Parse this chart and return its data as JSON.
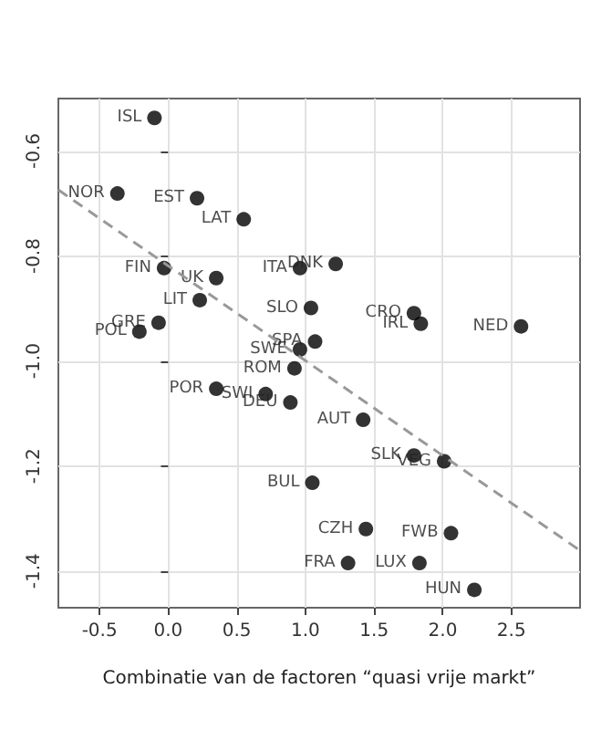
{
  "chart_data": {
    "type": "scatter",
    "xlabel": "Combinatie van de factoren “quasi vrije markt”",
    "xlim": [
      -0.8,
      3.0
    ],
    "ylim": [
      -1.47,
      -0.5
    ],
    "xticks": [
      -0.5,
      {
        "value": 0,
        "label": "0.0"
      },
      0.5,
      {
        "value": 1,
        "label": "1.0"
      },
      1.5,
      {
        "value": 2,
        "label": "2.0"
      },
      2.5
    ],
    "yticks": [
      -1.4,
      -1.2,
      {
        "value": -1,
        "label": "-1.0"
      },
      -0.8,
      -0.6
    ],
    "grid": true,
    "marker": "circle",
    "series": [
      {
        "color": "#000000",
        "x": [
          -0.1,
          -0.37,
          0.21,
          0.55,
          -0.03,
          0.35,
          0.23,
          -0.07,
          -0.21,
          0.96,
          1.04,
          1.22,
          1.79,
          1.84,
          2.57,
          1.07,
          0.96,
          0.92,
          0.35,
          0.71,
          0.89,
          1.42,
          1.79,
          2.01,
          1.05,
          1.44,
          2.06,
          1.31,
          1.83,
          2.23
        ],
        "values": [
          -0.537,
          -0.681,
          -0.69,
          -0.73,
          -0.823,
          -0.842,
          -0.884,
          -0.927,
          -0.944,
          -0.823,
          -0.899,
          -0.815,
          -0.909,
          -0.929,
          -0.934,
          -0.963,
          -0.978,
          -1.014,
          -1.053,
          -1.063,
          -1.079,
          -1.112,
          -1.18,
          -1.191,
          -1.232,
          -1.32,
          -1.328,
          -1.385,
          -1.385,
          -1.436
        ],
        "value_labels": [
          "ISL",
          "NOR",
          "EST",
          "LAT",
          "FIN",
          "UK",
          "LIT",
          "GRE",
          "POL",
          "ITA",
          "SLO",
          "DNK",
          "CRO",
          "IRL",
          "NED",
          "SPA",
          "SWE",
          "ROM",
          "POR",
          "SWI",
          "DEU",
          "AUT",
          "SLK",
          "VEG",
          "BUL",
          "CZH",
          "FWB",
          "FRA",
          "LUX",
          "HUN"
        ]
      },
      {
        "type": "line",
        "color": "#999999",
        "line_style": "dashed",
        "marker": "none",
        "x": [
          -0.8,
          3.0
        ],
        "values": [
          -0.674,
          -1.361
        ]
      }
    ]
  }
}
